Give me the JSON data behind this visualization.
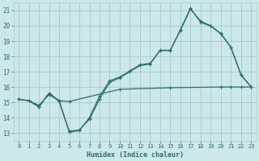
{
  "title": "",
  "xlabel": "Humidex (Indice chaleur)",
  "ylabel": "",
  "bg_color": "#cce8e8",
  "grid_color": "#aacfcf",
  "line_color": "#2e6e6e",
  "xlim": [
    -0.5,
    23.5
  ],
  "ylim": [
    12.5,
    21.5
  ],
  "xticks": [
    0,
    1,
    2,
    3,
    4,
    5,
    6,
    7,
    8,
    9,
    10,
    11,
    12,
    13,
    14,
    15,
    16,
    17,
    18,
    19,
    20,
    21,
    22,
    23
  ],
  "yticks": [
    13,
    14,
    15,
    16,
    17,
    18,
    19,
    20,
    21
  ],
  "line1_x": [
    0,
    1,
    2,
    3,
    4,
    5,
    6,
    7,
    8,
    9,
    10,
    11,
    12,
    13,
    14,
    15,
    16,
    17,
    18,
    19,
    20,
    21,
    22,
    23
  ],
  "line1_y": [
    15.2,
    15.1,
    14.7,
    15.6,
    15.1,
    13.1,
    13.2,
    13.9,
    15.2,
    16.3,
    16.6,
    17.0,
    17.4,
    17.5,
    18.4,
    18.4,
    19.7,
    21.1,
    20.3,
    20.0,
    19.5,
    18.6,
    16.8,
    16.0
  ],
  "line2_x": [
    0,
    1,
    2,
    3,
    4,
    5,
    6,
    7,
    8,
    9,
    10,
    11,
    12,
    13,
    14,
    15,
    16,
    17,
    18,
    19,
    20,
    21,
    22,
    23
  ],
  "line2_y": [
    15.2,
    15.1,
    14.7,
    15.6,
    15.05,
    13.05,
    13.15,
    14.0,
    15.4,
    16.4,
    16.65,
    17.05,
    17.45,
    17.55,
    18.38,
    18.38,
    19.75,
    21.15,
    20.22,
    19.98,
    19.48,
    18.58,
    16.78,
    16.0
  ],
  "line3_x": [
    0,
    1,
    2,
    3,
    4,
    5,
    10,
    15,
    20,
    21,
    22,
    23
  ],
  "line3_y": [
    15.2,
    15.1,
    14.8,
    15.5,
    15.1,
    15.05,
    15.85,
    15.95,
    16.0,
    16.0,
    16.0,
    16.0
  ]
}
